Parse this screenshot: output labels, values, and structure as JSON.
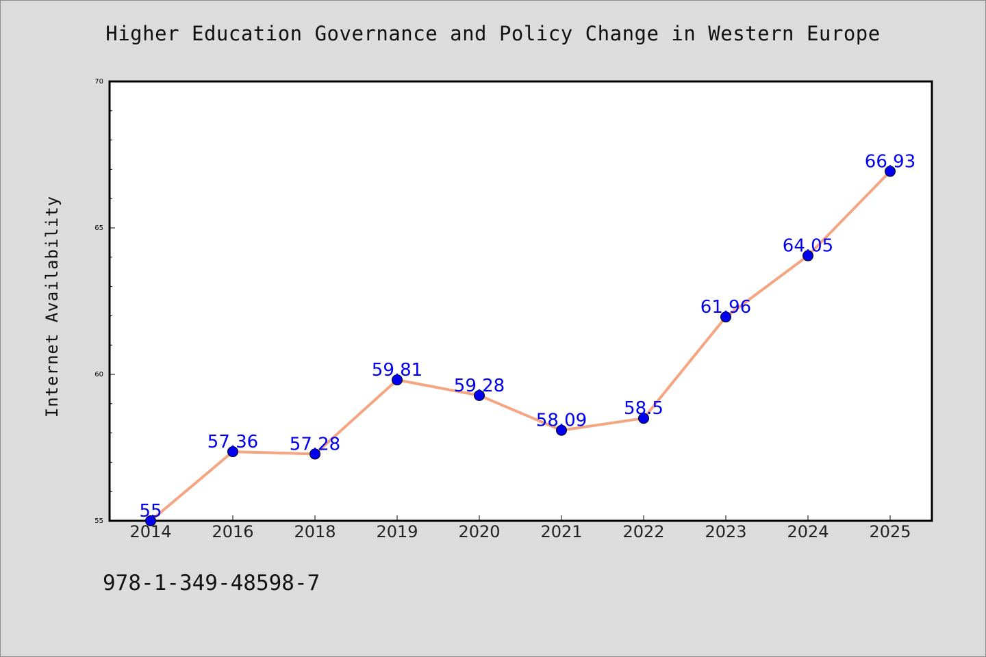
{
  "figure": {
    "footer_text": "978-1-349-48598-7",
    "background": "#dcdcdc"
  },
  "chart_data": {
    "type": "line",
    "title": "Higher Education Governance and Policy Change in Western Europe",
    "xlabel": "",
    "ylabel": "Internet Availability",
    "categories": [
      "2014",
      "2016",
      "2018",
      "2019",
      "2020",
      "2021",
      "2022",
      "2023",
      "2024",
      "2025"
    ],
    "series": [
      {
        "values": [
          55,
          57.36,
          57.28,
          59.81,
          59.28,
          58.09,
          58.5,
          61.96,
          64.05,
          66.93
        ],
        "labels": [
          "55",
          "57.36",
          "57.28",
          "59.81",
          "59.28",
          "58.09",
          "58.5",
          "61.96",
          "64.05",
          "66.93"
        ],
        "line_color": "#f4a582",
        "marker_color": "#0000ee",
        "label_color": "#0000ee"
      }
    ],
    "ylim": [
      55,
      70
    ],
    "yticks": [
      55,
      60,
      65,
      70
    ],
    "grid": false,
    "legend": "none"
  }
}
